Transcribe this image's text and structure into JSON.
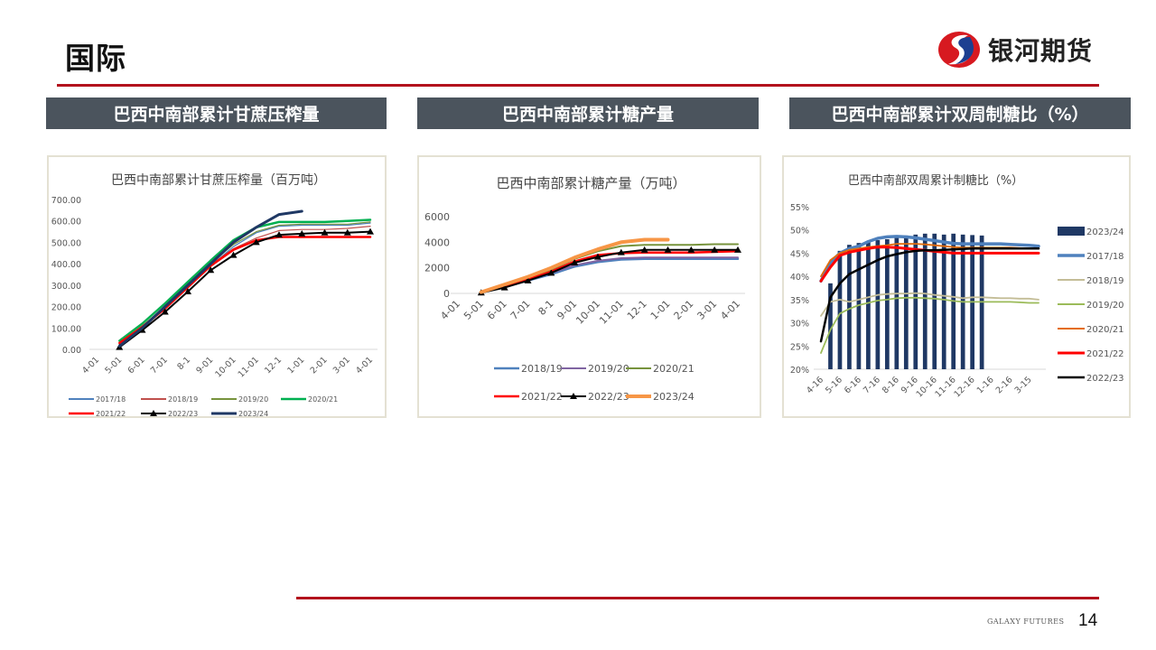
{
  "header": {
    "title": "国际",
    "logo_text": "银河期货"
  },
  "sections": [
    {
      "label": "巴西中南部累计甘蔗压榨量"
    },
    {
      "label": "巴西中南部累计糖产量"
    },
    {
      "label": "巴西中南部累计双周制糖比（%）"
    }
  ],
  "footer": {
    "brand": "GALAXY FUTURES",
    "page_number": "14"
  },
  "colors": {
    "accent_red": "#b3121d",
    "section_bar": "#4b545d"
  },
  "chart_data": [
    {
      "type": "line",
      "title": "巴西中南部累计甘蔗压榨量（百万吨）",
      "categories": [
        "4-01",
        "5-01",
        "6-01",
        "7-01",
        "8-1",
        "9-01",
        "10-01",
        "11-01",
        "12-1",
        "1-01",
        "2-01",
        "3-01",
        "4-01"
      ],
      "ylim": [
        0,
        700
      ],
      "y_tick_labels": [
        "0.00",
        "100.00",
        "200.00",
        "300.00",
        "400.00",
        "500.00",
        "600.00",
        "700.00"
      ],
      "legend": "bottom",
      "series": [
        {
          "name": "2017/18",
          "color": "#4f81bd",
          "width": 1.2,
          "values": [
            null,
            20,
            100,
            190,
            290,
            390,
            480,
            545,
            575,
            580,
            580,
            580,
            590
          ]
        },
        {
          "name": "2018/19",
          "color": "#c0504d",
          "width": 1.2,
          "values": [
            null,
            25,
            105,
            195,
            295,
            395,
            470,
            520,
            555,
            560,
            560,
            565,
            575
          ]
        },
        {
          "name": "2019/20",
          "color": "#77933c",
          "width": 1.2,
          "values": [
            null,
            30,
            110,
            200,
            300,
            400,
            490,
            550,
            580,
            585,
            585,
            585,
            595
          ]
        },
        {
          "name": "2020/21",
          "color": "#00b050",
          "width": 2.5,
          "values": [
            null,
            40,
            120,
            215,
            315,
            415,
            510,
            570,
            595,
            595,
            595,
            600,
            605
          ]
        },
        {
          "name": "2021/22",
          "color": "#ff0000",
          "width": 2.5,
          "values": [
            null,
            30,
            105,
            190,
            290,
            390,
            465,
            510,
            525,
            525,
            525,
            525,
            525
          ]
        },
        {
          "name": "2022/23",
          "color": "#000000",
          "width": 2,
          "marker": "triangle",
          "values": [
            null,
            10,
            90,
            175,
            270,
            370,
            440,
            500,
            535,
            540,
            545,
            545,
            550
          ]
        },
        {
          "name": "2023/24",
          "color": "#1f3864",
          "width": 3,
          "values": [
            null,
            15,
            100,
            200,
            300,
            400,
            500,
            570,
            630,
            645,
            null,
            null,
            null
          ]
        }
      ]
    },
    {
      "type": "line",
      "title": "巴西中南部累计糖产量（万吨）",
      "categories": [
        "4-01",
        "5-01",
        "6-01",
        "7-01",
        "8-1",
        "9-01",
        "10-01",
        "11-01",
        "12-1",
        "1-01",
        "2-01",
        "3-01",
        "4-01"
      ],
      "ylim": [
        0,
        6000
      ],
      "y_tick_labels": [
        "0",
        "2000",
        "4000",
        "6000"
      ],
      "legend": "bottom",
      "series": [
        {
          "name": "2018/19",
          "color": "#4f81bd",
          "width": 2.5,
          "values": [
            null,
            100,
            500,
            1000,
            1500,
            2100,
            2450,
            2650,
            2700,
            2700,
            2700,
            2700,
            2700
          ]
        },
        {
          "name": "2019/20",
          "color": "#8064a2",
          "width": 2,
          "values": [
            null,
            100,
            550,
            1050,
            1600,
            2200,
            2550,
            2750,
            2800,
            2800,
            2800,
            2800,
            2800
          ]
        },
        {
          "name": "2020/21",
          "color": "#77933c",
          "width": 2,
          "values": [
            null,
            150,
            650,
            1200,
            1850,
            2700,
            3300,
            3700,
            3800,
            3800,
            3800,
            3850,
            3850
          ]
        },
        {
          "name": "2021/22",
          "color": "#ff0000",
          "width": 2.5,
          "values": [
            null,
            100,
            550,
            1100,
            1700,
            2500,
            3000,
            3150,
            3200,
            3200,
            3200,
            3250,
            3300
          ]
        },
        {
          "name": "2022/23",
          "color": "#000000",
          "width": 2,
          "marker": "triangle",
          "values": [
            null,
            50,
            450,
            1000,
            1600,
            2400,
            2850,
            3200,
            3400,
            3400,
            3400,
            3400,
            3400
          ]
        },
        {
          "name": "2023/24",
          "color": "#f79646",
          "width": 4,
          "values": [
            null,
            100,
            700,
            1300,
            2000,
            2800,
            3450,
            4000,
            4200,
            4200,
            null,
            null,
            null
          ]
        }
      ]
    },
    {
      "type": "bar+line",
      "title": "巴西中南部双周累计制糖比（%）",
      "x_tick_labels": [
        "4-16",
        "5-16",
        "6-16",
        "7-16",
        "8-16",
        "9-16",
        "10-16",
        "11-16",
        "12-16",
        "1-16",
        "2-16",
        "3-15"
      ],
      "ylim": [
        20,
        55
      ],
      "y_tick_labels": [
        "20%",
        "25%",
        "30%",
        "35%",
        "40%",
        "45%",
        "50%",
        "55%"
      ],
      "legend": "right",
      "bars": {
        "name": "2023/24",
        "color": "#1f3864",
        "values": [
          null,
          38.5,
          45.5,
          46.8,
          47.2,
          47.5,
          47.8,
          48,
          48.3,
          48.8,
          49,
          49.2,
          49.2,
          49,
          49.2,
          49,
          48.9,
          48.8,
          null,
          null,
          null,
          null,
          null,
          null
        ]
      },
      "series": [
        {
          "name": "2017/18",
          "color": "#4f81bd",
          "width": 3.5,
          "values": [
            39,
            43,
            45,
            46,
            46.5,
            47.5,
            48.2,
            48.5,
            48.6,
            48.5,
            48.3,
            48,
            47.7,
            47.4,
            47.1,
            47,
            47,
            47,
            47,
            47,
            46.9,
            46.8,
            46.7,
            46.5
          ]
        },
        {
          "name": "2018/19",
          "color": "#c4bd97",
          "width": 1.8,
          "values": [
            31.5,
            34.5,
            35,
            34.5,
            35,
            35.5,
            36,
            36.2,
            36.3,
            36.3,
            36.4,
            36.3,
            36,
            35.8,
            35.6,
            35.3,
            35.5,
            35.5,
            35.4,
            35.3,
            35.3,
            35.2,
            35.2,
            35
          ]
        },
        {
          "name": "2019/20",
          "color": "#9bbb59",
          "width": 1.8,
          "values": [
            23.5,
            28.5,
            32,
            33,
            33.8,
            34.3,
            34.8,
            35,
            35.3,
            35.4,
            35.4,
            35.3,
            35.2,
            35,
            34.7,
            34.5,
            34.5,
            34.5,
            34.5,
            34.5,
            34.5,
            34.4,
            34.3,
            34.3
          ]
        },
        {
          "name": "2020/21",
          "color": "#e46c0a",
          "width": 1.8,
          "values": [
            40,
            43.5,
            45,
            45.7,
            46,
            46.3,
            46.5,
            46.7,
            47,
            47,
            47,
            46.9,
            46.7,
            46.5,
            46.3,
            46.2,
            46.2,
            46.2,
            46.2,
            46.2,
            46.2,
            46.1,
            46,
            46
          ]
        },
        {
          "name": "2021/22",
          "color": "#ff0000",
          "width": 3,
          "values": [
            39,
            42,
            44.5,
            45.2,
            45.6,
            46,
            46.3,
            46.3,
            46.2,
            46,
            45.8,
            45.6,
            45.4,
            45.2,
            45,
            45,
            45,
            45,
            45,
            45,
            45,
            45,
            45,
            45
          ]
        },
        {
          "name": "2022/23",
          "color": "#000000",
          "width": 2.5,
          "values": [
            26,
            35.5,
            38.5,
            40.5,
            41.5,
            42.5,
            43.5,
            44.3,
            44.8,
            45.2,
            45.5,
            45.6,
            45.6,
            45.7,
            45.8,
            45.9,
            46,
            46,
            46,
            46,
            46,
            46,
            46,
            46
          ]
        }
      ]
    }
  ]
}
